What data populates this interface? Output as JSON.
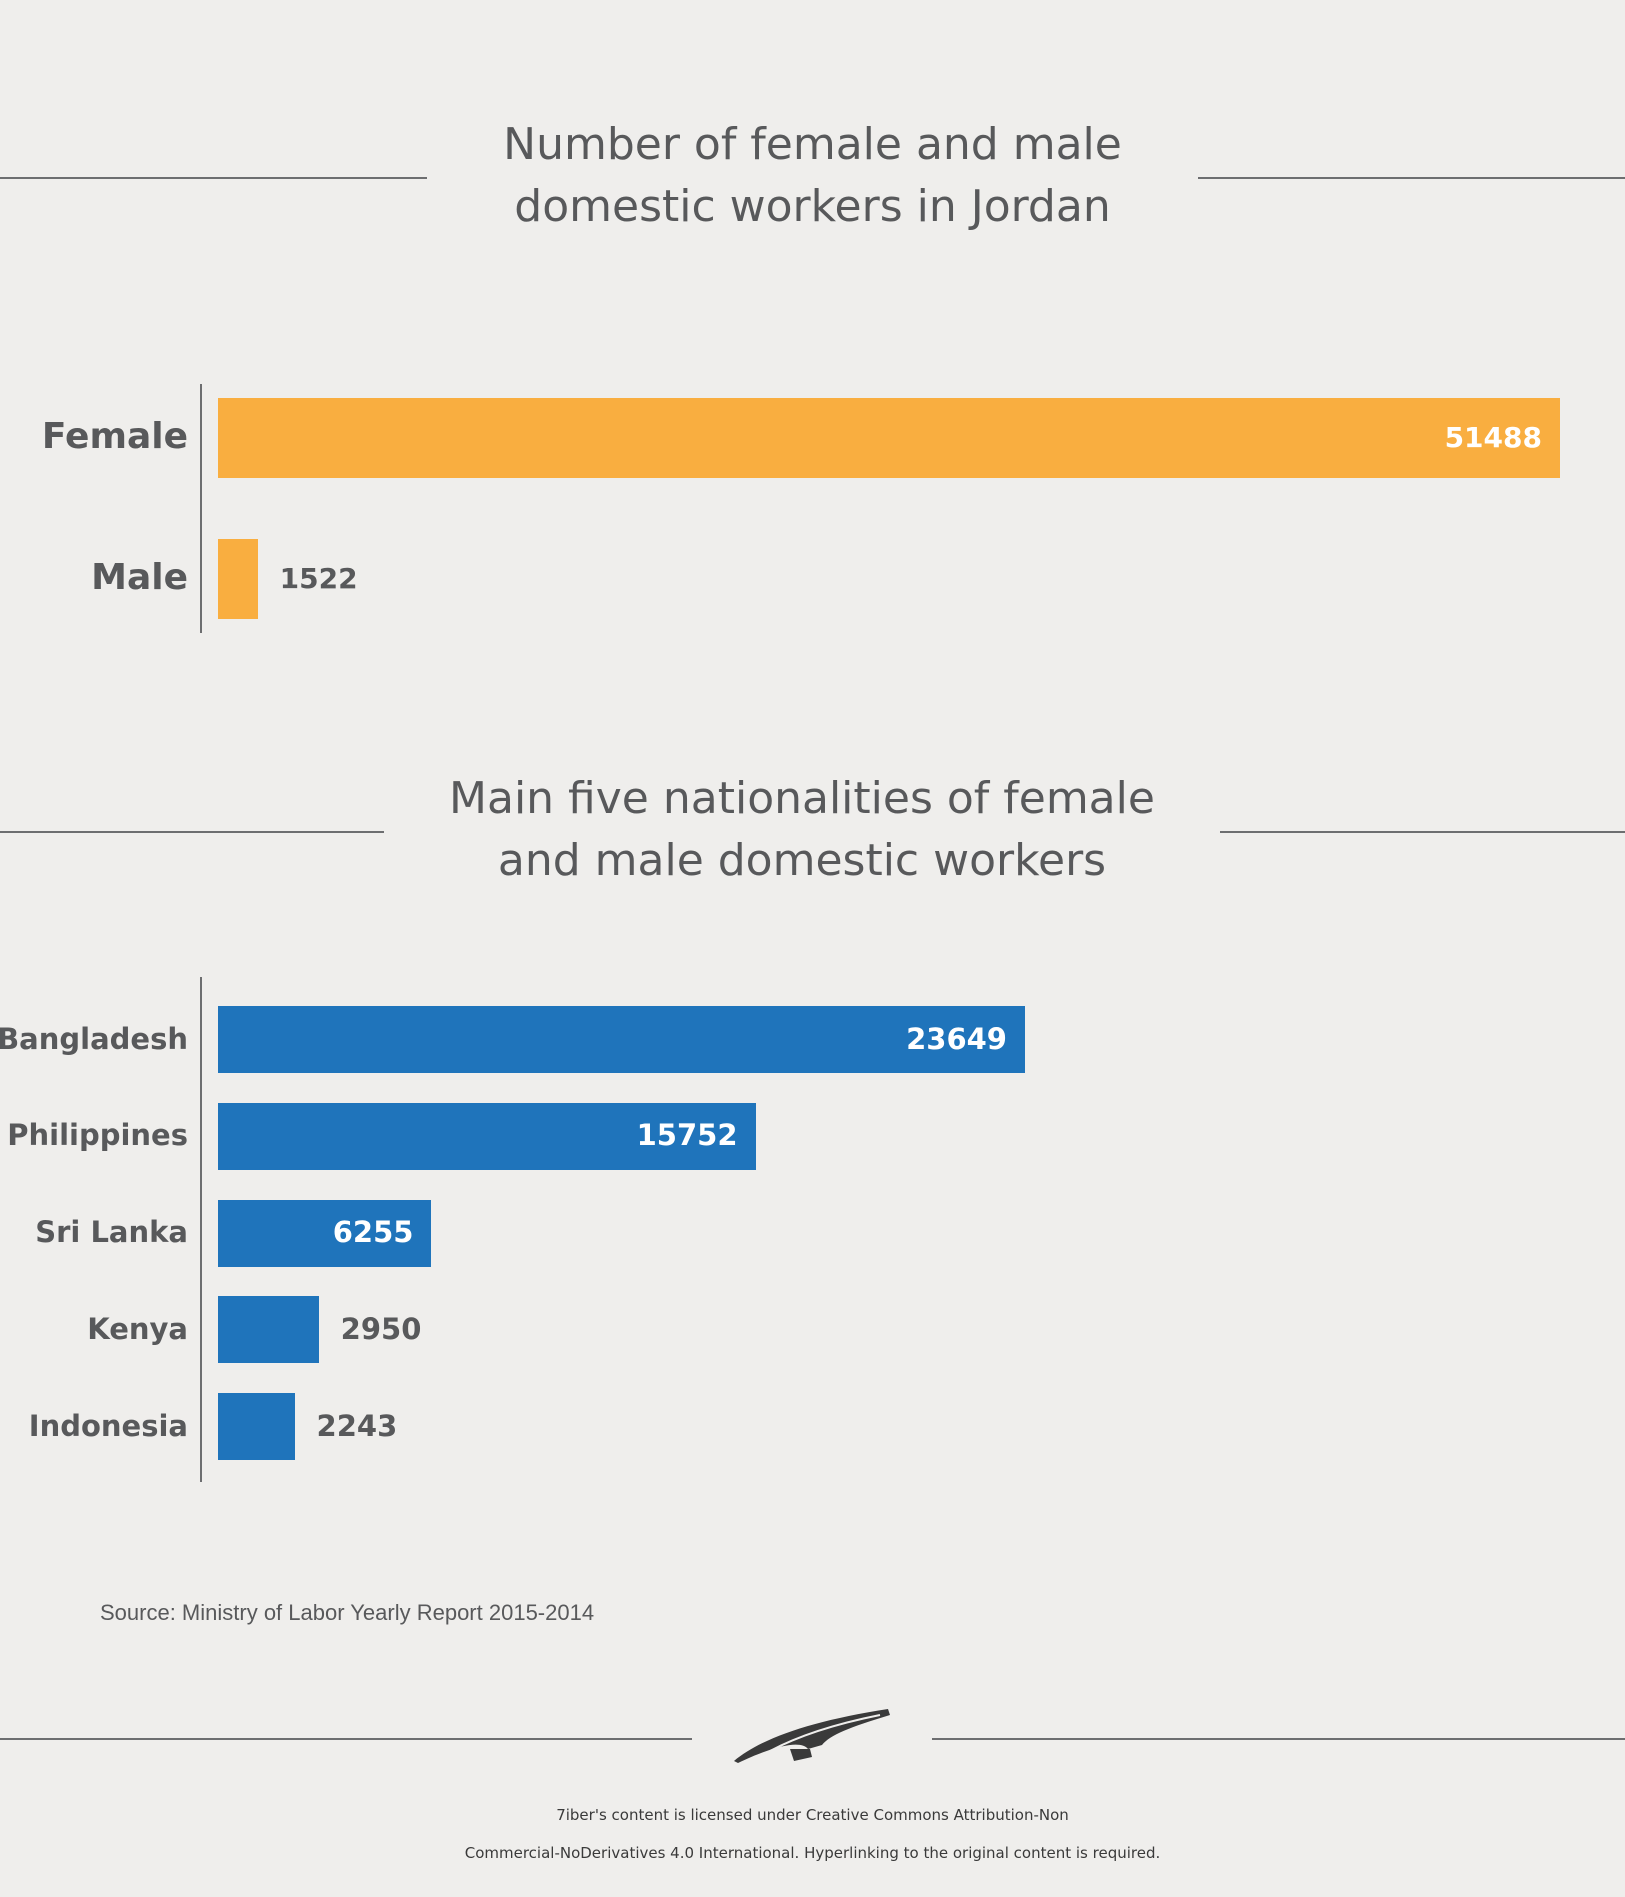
{
  "chart_data": [
    {
      "type": "bar",
      "orientation": "horizontal",
      "title": "Number of female and male domestic workers in Jordan",
      "title_lines": [
        "Number of female and male",
        "domestic workers in Jordan"
      ],
      "categories": [
        "Female",
        "Male"
      ],
      "values": [
        51488,
        1522
      ],
      "value_labels": [
        "51488",
        "1522"
      ],
      "color": "#f9ae40",
      "xlim": [
        0,
        51488
      ],
      "grid": false
    },
    {
      "type": "bar",
      "orientation": "horizontal",
      "title": "Main five nationalities of female and male domestic workers",
      "title_lines": [
        "Main five nationalities of female",
        "and male domestic workers"
      ],
      "categories": [
        "Bangladesh",
        "Philippines",
        "Sri Lanka",
        "Kenya",
        "Indonesia"
      ],
      "values": [
        23649,
        15752,
        6255,
        2950,
        2243
      ],
      "value_labels": [
        "23649",
        "15752",
        "6255",
        "2950",
        "2243"
      ],
      "color": "#1f74bb",
      "xlim": [
        0,
        23649
      ],
      "grid": false
    }
  ],
  "source": "Source: Ministry of Labor Yearly Report 2015-2014",
  "license_lines": [
    "7iber's content is licensed under Creative Commons Attribution-Non",
    "Commercial-NoDerivatives 4.0 International. Hyperlinking to the original content is required."
  ],
  "logo_icon": "pen-nib-logo-icon"
}
